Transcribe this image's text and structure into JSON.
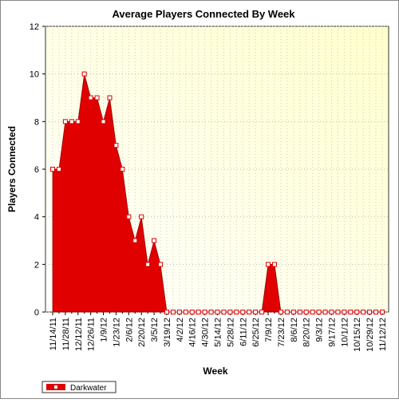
{
  "chart_data": {
    "type": "area",
    "title": "Average Players Connected By Week",
    "x_label": "Week",
    "y_label": "Players Connected",
    "categories": [
      "11/14/11",
      null,
      "11/28/11",
      null,
      "12/12/11",
      null,
      "12/26/11",
      null,
      "1/9/12",
      null,
      "1/23/12",
      null,
      "2/6/12",
      null,
      "2/20/12",
      null,
      "3/5/12",
      null,
      "3/19/12",
      null,
      "4/2/12",
      null,
      "4/16/12",
      null,
      "4/30/12",
      null,
      "5/14/12",
      null,
      "5/28/12",
      null,
      "6/11/12",
      null,
      "6/25/12",
      null,
      "7/9/12",
      null,
      "7/23/12",
      null,
      "8/6/12",
      null,
      "8/20/12",
      null,
      "9/3/12",
      null,
      "9/17/12",
      null,
      "10/1/12",
      null,
      "10/15/12",
      null,
      "10/29/12",
      null,
      "11/12/12"
    ],
    "series": [
      {
        "name": "Darkwater",
        "color": "#e00000",
        "values": [
          6,
          6,
          8,
          8,
          8,
          10,
          9,
          9,
          8,
          9,
          7,
          6,
          4,
          3,
          4,
          2,
          3,
          2,
          0,
          0,
          0,
          0,
          0,
          0,
          0,
          0,
          0,
          0,
          0,
          0,
          0,
          0,
          0,
          0,
          2,
          2,
          0,
          0,
          0,
          0,
          0,
          0,
          0,
          0,
          0,
          0,
          0,
          0,
          0,
          0,
          0,
          0,
          0
        ]
      }
    ],
    "ylim": [
      0,
      12
    ],
    "yticks": [
      0,
      2,
      4,
      6,
      8,
      10,
      12
    ],
    "grid": true,
    "legend": "bottom-left"
  }
}
